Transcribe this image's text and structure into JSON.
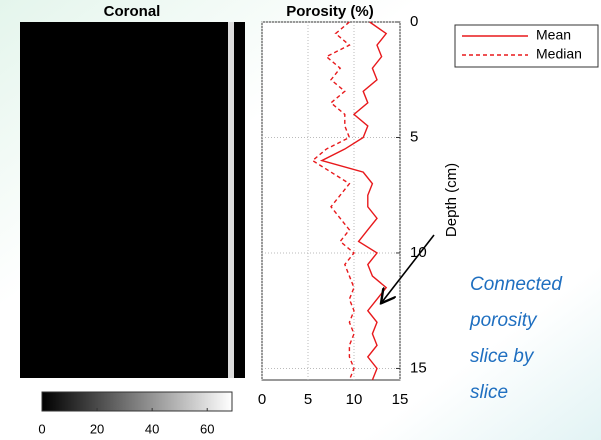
{
  "chart_data": [
    {
      "type": "image",
      "title": "Coronal",
      "clim": [
        0,
        69
      ],
      "cticks": [
        0,
        20,
        40,
        60
      ]
    },
    {
      "type": "line",
      "title": "Porosity (%)",
      "y_label": "Depth (cm)",
      "y": [
        0,
        0.5,
        1,
        1.5,
        2,
        2.5,
        3,
        3.5,
        4,
        4.5,
        5,
        5.5,
        6,
        6.5,
        7,
        7.5,
        8,
        8.5,
        9,
        9.5,
        10,
        10.5,
        11,
        11.5,
        12,
        12.5,
        13,
        13.5,
        14,
        14.5,
        15,
        15.5
      ],
      "series": [
        {
          "name": "Mean",
          "color": "#e8191c",
          "dash": false,
          "values": [
            11.7,
            13.5,
            12.5,
            13,
            12,
            12.5,
            11,
            11.5,
            10,
            11.5,
            11,
            9,
            6.5,
            11,
            12,
            11.5,
            11.5,
            12.5,
            11.5,
            10.5,
            12.5,
            11.5,
            12,
            13.5,
            12.5,
            11.5,
            12.5,
            12,
            12.5,
            11.5,
            12.5,
            12
          ]
        },
        {
          "name": "Median",
          "color": "#e8191c",
          "dash": true,
          "values": [
            9.5,
            8,
            9.5,
            7,
            8.5,
            7.5,
            9,
            7.5,
            9,
            9,
            9.5,
            7,
            5.5,
            7.5,
            9.5,
            8.5,
            7.5,
            8.5,
            9.5,
            8.5,
            10,
            9,
            9.5,
            10,
            9.5,
            10,
            9.5,
            10,
            9.5,
            9.5,
            10,
            9.5
          ]
        }
      ],
      "xlim": [
        0,
        15
      ],
      "xticks": [
        0,
        5,
        10,
        15
      ],
      "ylim": [
        0,
        15.5
      ],
      "yticks": [
        0,
        5,
        10,
        15
      ],
      "y_reversed": true,
      "grid": true,
      "legend": "outside-right",
      "annotation": [
        "Connected",
        "porosity",
        "slice by",
        "slice"
      ]
    }
  ]
}
